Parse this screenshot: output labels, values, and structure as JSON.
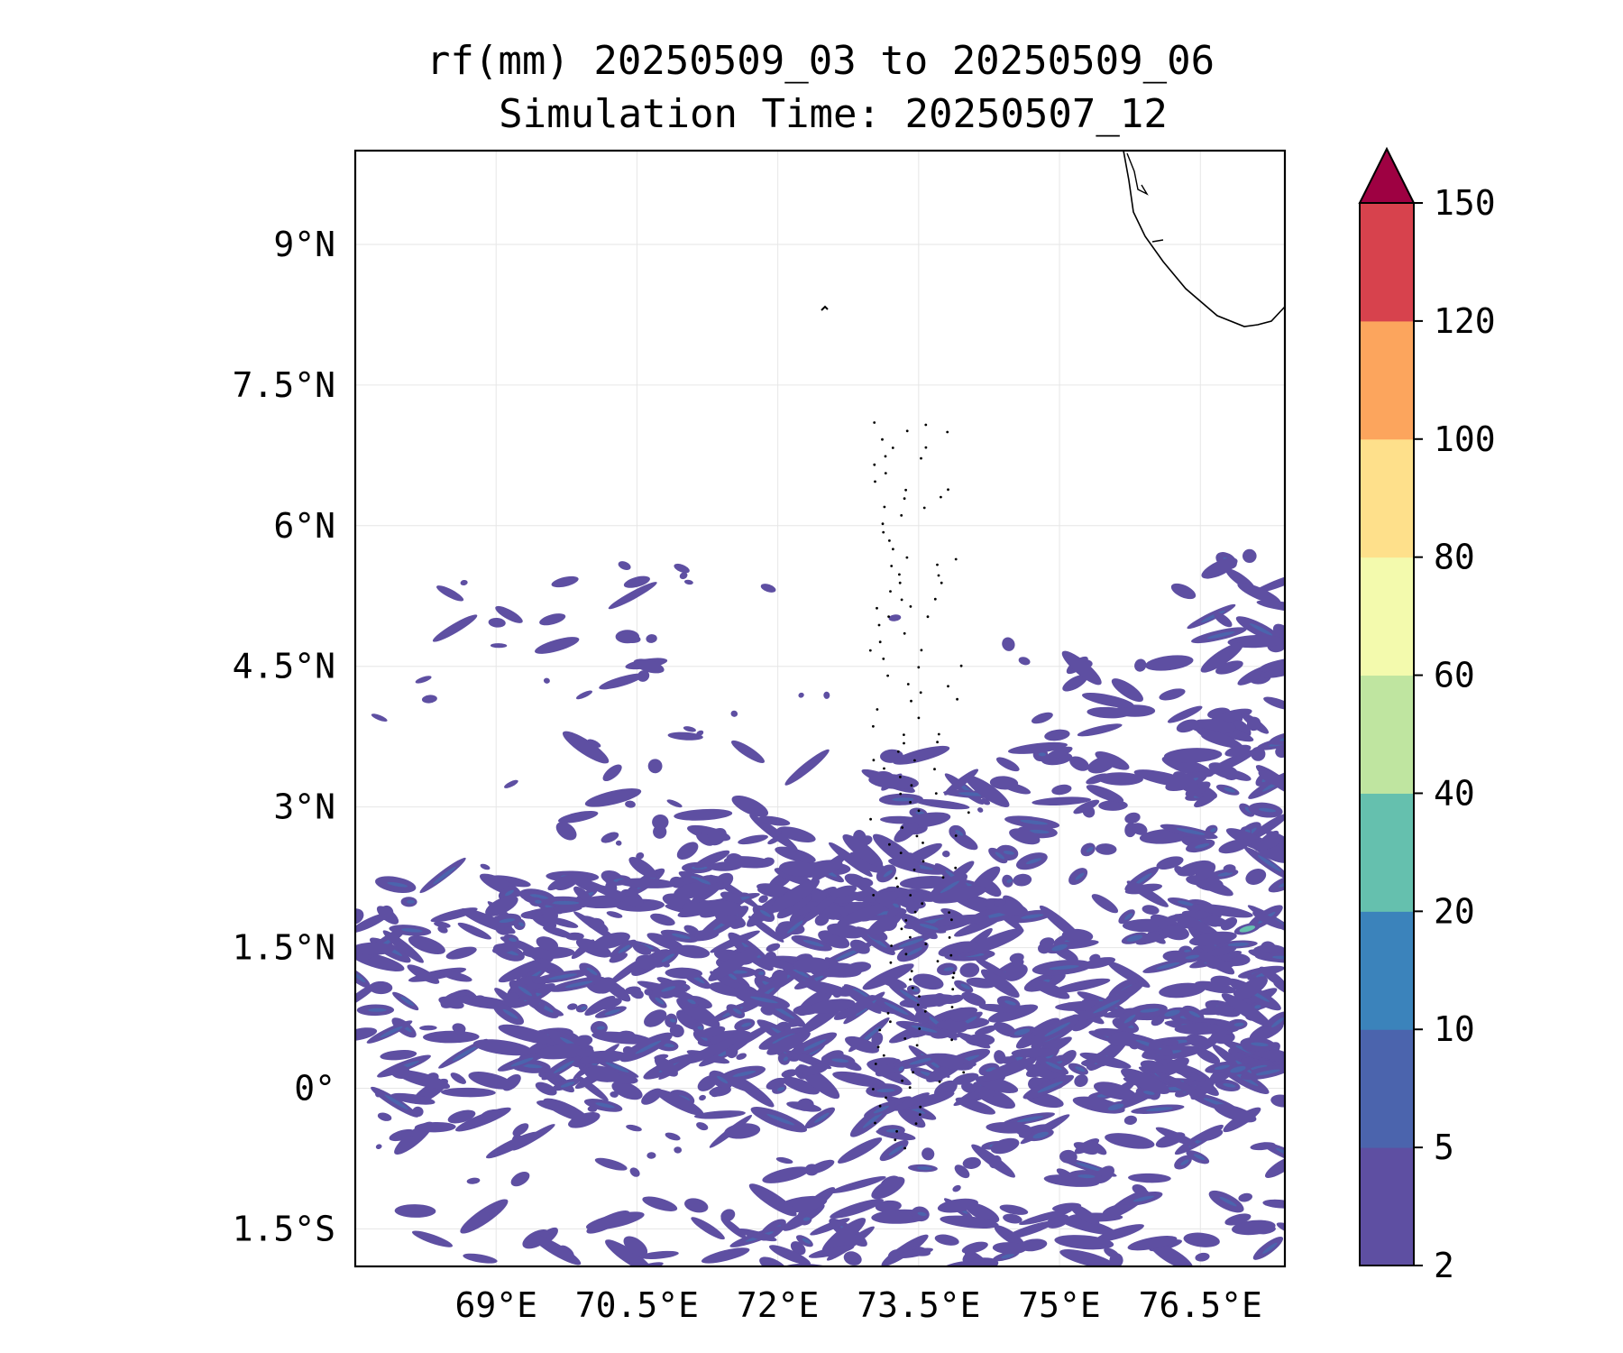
{
  "title": {
    "line1": "rf(mm) 20250509_03 to 20250509_06",
    "line2": "Simulation Time: 20250507_12"
  },
  "map": {
    "extent": {
      "lon_min": 67.5,
      "lon_max": 77.4,
      "lat_min": -1.9,
      "lat_max": 10.0
    },
    "lon_ticks": [
      {
        "value": 69,
        "label": "69°E"
      },
      {
        "value": 70.5,
        "label": "70.5°E"
      },
      {
        "value": 72,
        "label": "72°E"
      },
      {
        "value": 73.5,
        "label": "73.5°E"
      },
      {
        "value": 75,
        "label": "75°E"
      },
      {
        "value": 76.5,
        "label": "76.5°E"
      }
    ],
    "lat_ticks": [
      {
        "value": 9,
        "label": "9°N"
      },
      {
        "value": 7.5,
        "label": "7.5°N"
      },
      {
        "value": 6,
        "label": "6°N"
      },
      {
        "value": 4.5,
        "label": "4.5°N"
      },
      {
        "value": 3,
        "label": "3°N"
      },
      {
        "value": 1.5,
        "label": "1.5°N"
      },
      {
        "value": 0,
        "label": "0°"
      },
      {
        "value": -1.5,
        "label": "1.5°S"
      }
    ],
    "gridlines": true
  },
  "colorbar": {
    "levels": [
      "2",
      "5",
      "10",
      "20",
      "40",
      "60",
      "80",
      "100",
      "120",
      "150"
    ],
    "colors": [
      "#5e4fa2",
      "#4b64ad",
      "#3b83bb",
      "#65c0ae",
      "#bfe5a0",
      "#f3faad",
      "#fee08b",
      "#fca55d",
      "#d7424d"
    ],
    "extend_color": "#9e0142",
    "extend": "max"
  },
  "chart_data": {
    "type": "heatmap",
    "variable": "rf(mm)",
    "period": "20250509_03 to 20250509_06",
    "simulation_time": "20250507_12",
    "x_range": [
      67.5,
      77.4
    ],
    "y_range": [
      -1.9,
      10.0
    ],
    "cells": [
      {
        "lon": 69.6,
        "lat": 5.0,
        "class": 1
      },
      {
        "lon": 70.5,
        "lat": 5.4,
        "class": 1
      },
      {
        "lon": 76.2,
        "lat": 4.2,
        "class": 1
      },
      {
        "lon": 76.9,
        "lat": 3.6,
        "class": 1
      },
      {
        "lon": 77.2,
        "lat": 2.6,
        "class": 1
      },
      {
        "lon": 72.7,
        "lat": 2.1,
        "class": 1
      },
      {
        "lon": 74.0,
        "lat": 1.5,
        "class": 1
      },
      {
        "lon": 75.0,
        "lat": 1.5,
        "class": 2
      },
      {
        "lon": 75.8,
        "lat": 1.6,
        "class": 2
      },
      {
        "lon": 77.0,
        "lat": 1.7,
        "class": 4
      },
      {
        "lon": 69.1,
        "lat": 1.5,
        "class": 1
      },
      {
        "lon": 70.2,
        "lat": 0.9,
        "class": 1
      },
      {
        "lon": 71.3,
        "lat": 0.6,
        "class": 1
      },
      {
        "lon": 72.4,
        "lat": 0.2,
        "class": 1
      },
      {
        "lon": 74.6,
        "lat": 0.6,
        "class": 2
      },
      {
        "lon": 76.2,
        "lat": 0.8,
        "class": 2
      },
      {
        "lon": 74.0,
        "lat": 0.1,
        "class": 1
      },
      {
        "lon": 75.6,
        "lat": -0.2,
        "class": 2
      },
      {
        "lon": 76.9,
        "lat": 0.2,
        "class": 2
      },
      {
        "lon": 74.8,
        "lat": -0.5,
        "class": 2
      },
      {
        "lon": 76.6,
        "lat": -0.5,
        "class": 1
      },
      {
        "lon": 75.6,
        "lat": -1.3,
        "class": 1
      },
      {
        "lon": 76.9,
        "lat": -1.4,
        "class": 1
      },
      {
        "lon": 74.1,
        "lat": -1.7,
        "class": 1
      },
      {
        "lon": 68.0,
        "lat": -0.5,
        "class": 1
      }
    ]
  }
}
